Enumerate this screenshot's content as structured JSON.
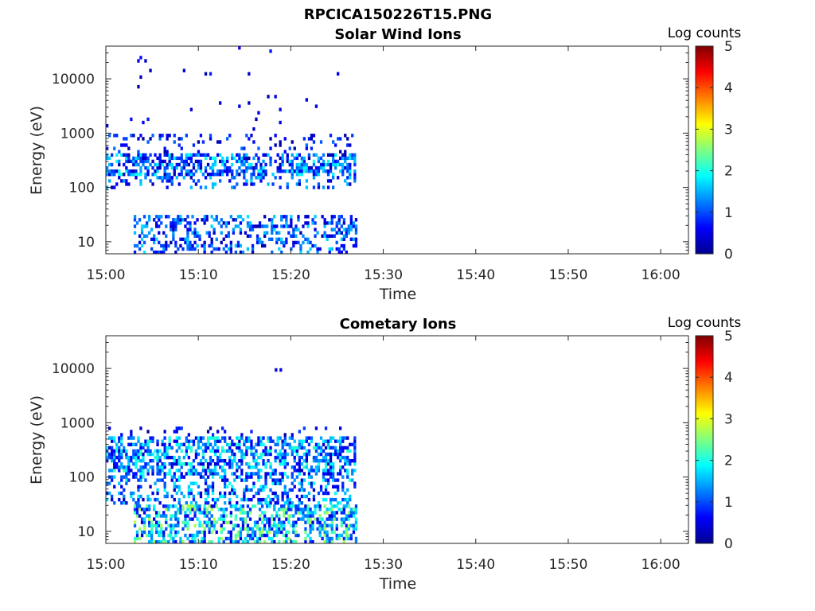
{
  "figure_title": "RPCICA150226T15.PNG",
  "colorbar": {
    "label": "Log counts",
    "ticks": [
      "0",
      "1",
      "2",
      "3",
      "4",
      "5"
    ],
    "range": [
      0,
      5
    ],
    "colormap": "jet"
  },
  "chart_data": [
    {
      "type": "heatmap",
      "title": "Solar Wind Ions",
      "xlabel": "Time",
      "ylabel": "Energy (eV)",
      "x_tick_labels": [
        "15:00",
        "15:10",
        "15:20",
        "15:30",
        "15:40",
        "15:50",
        "16:00"
      ],
      "y_tick_labels": [
        "10",
        "100",
        "1000",
        "10000"
      ],
      "y_scale": "log",
      "ylim": [
        6,
        40000
      ],
      "xlim_minutes": [
        0,
        63
      ],
      "data_time_extent_minutes": [
        0,
        27
      ],
      "clusters": [
        {
          "t": [
            0.0,
            27.0
          ],
          "e": [
            150,
            400
          ],
          "v": [
            0.2,
            2.0
          ],
          "density": 0.55
        },
        {
          "t": [
            0.0,
            27.0
          ],
          "e": [
            90,
            150
          ],
          "v": [
            0.2,
            1.7
          ],
          "density": 0.3
        },
        {
          "t": [
            0.0,
            27.0
          ],
          "e": [
            400,
            900
          ],
          "v": [
            0.1,
            1.2
          ],
          "density": 0.14
        },
        {
          "t": [
            3.0,
            27.0
          ],
          "e": [
            6,
            30
          ],
          "v": [
            0.2,
            1.8
          ],
          "density": 0.35
        },
        {
          "t": [
            0.0,
            27.0
          ],
          "e": [
            1000,
            40000
          ],
          "v": [
            0.2,
            0.8
          ],
          "density": 0.012
        }
      ]
    },
    {
      "type": "heatmap",
      "title": "Cometary Ions",
      "xlabel": "Time",
      "ylabel": "Energy (eV)",
      "x_tick_labels": [
        "15:00",
        "15:10",
        "15:20",
        "15:30",
        "15:40",
        "15:50",
        "16:00"
      ],
      "y_tick_labels": [
        "10",
        "100",
        "1000",
        "10000"
      ],
      "y_scale": "log",
      "ylim": [
        6,
        40000
      ],
      "xlim_minutes": [
        0,
        63
      ],
      "data_time_extent_minutes": [
        0,
        27
      ],
      "clusters": [
        {
          "t": [
            0.0,
            27.0
          ],
          "e": [
            100,
            500
          ],
          "v": [
            0.3,
            2.2
          ],
          "density": 0.55
        },
        {
          "t": [
            0.0,
            27.0
          ],
          "e": [
            30,
            100
          ],
          "v": [
            0.3,
            2.0
          ],
          "density": 0.35
        },
        {
          "t": [
            3.0,
            27.0
          ],
          "e": [
            6,
            30
          ],
          "v": [
            0.4,
            2.8
          ],
          "density": 0.5
        },
        {
          "t": [
            0.0,
            27.0
          ],
          "e": [
            500,
            800
          ],
          "v": [
            0.1,
            1.0
          ],
          "density": 0.1
        },
        {
          "t": [
            18.0,
            18.8
          ],
          "e": [
            8000,
            10000
          ],
          "v": [
            0.3,
            0.6
          ],
          "density": 0.5
        }
      ]
    }
  ]
}
